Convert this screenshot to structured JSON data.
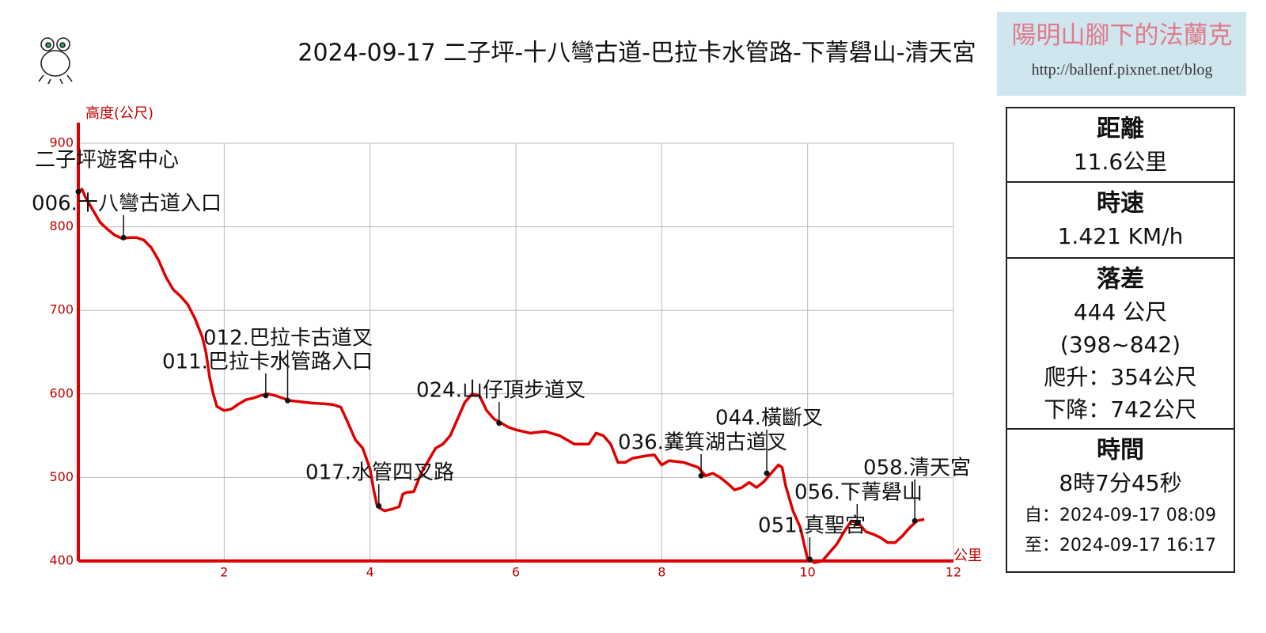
{
  "chart_data": {
    "type": "line",
    "title": "2024-09-17 二子坪-十八彎古道-巴拉卡水管路-下菁礐山-清天宮",
    "y_label": "高度(公尺)",
    "x_label": "公里",
    "x": [
      0,
      0.05,
      0.1,
      0.2,
      0.3,
      0.4,
      0.5,
      0.6,
      0.7,
      0.8,
      0.9,
      1.0,
      1.1,
      1.2,
      1.3,
      1.4,
      1.5,
      1.6,
      1.7,
      1.75,
      1.8,
      1.85,
      1.9,
      2.0,
      2.1,
      2.2,
      2.3,
      2.4,
      2.5,
      2.6,
      2.7,
      2.8,
      2.9,
      3.0,
      3.2,
      3.4,
      3.5,
      3.6,
      3.7,
      3.8,
      3.9,
      4.0,
      4.05,
      4.1,
      4.2,
      4.3,
      4.4,
      4.45,
      4.5,
      4.6,
      4.7,
      4.8,
      4.9,
      5.0,
      5.1,
      5.2,
      5.3,
      5.4,
      5.5,
      5.6,
      5.7,
      5.8,
      5.9,
      6.0,
      6.2,
      6.4,
      6.6,
      6.8,
      7.0,
      7.1,
      7.2,
      7.3,
      7.4,
      7.5,
      7.6,
      7.8,
      7.9,
      8.0,
      8.1,
      8.3,
      8.5,
      8.6,
      8.7,
      8.8,
      8.9,
      9.0,
      9.1,
      9.2,
      9.3,
      9.4,
      9.5,
      9.6,
      9.65,
      9.7,
      9.8,
      9.9,
      10.0,
      10.1,
      10.2,
      10.3,
      10.4,
      10.5,
      10.6,
      10.7,
      10.8,
      10.9,
      11.0,
      11.1,
      11.2,
      11.3,
      11.4,
      11.5,
      11.6
    ],
    "series": [
      {
        "color": "#dd0000",
        "values": [
          842,
          845,
          835,
          820,
          805,
          797,
          790,
          786,
          787,
          787,
          784,
          775,
          760,
          740,
          725,
          717,
          707,
          690,
          668,
          650,
          620,
          600,
          585,
          580,
          582,
          588,
          593,
          595,
          598,
          600,
          598,
          595,
          592,
          591,
          589,
          588,
          587,
          584,
          565,
          545,
          535,
          510,
          485,
          465,
          460,
          462,
          465,
          480,
          482,
          483,
          505,
          520,
          535,
          540,
          550,
          570,
          590,
          600,
          598,
          580,
          570,
          565,
          560,
          557,
          553,
          555,
          550,
          540,
          540,
          553,
          550,
          540,
          518,
          518,
          523,
          526,
          527,
          515,
          520,
          518,
          512,
          502,
          505,
          500,
          493,
          485,
          488,
          494,
          488,
          495,
          505,
          515,
          512,
          490,
          460,
          440,
          402,
          398,
          400,
          410,
          420,
          435,
          448,
          445,
          435,
          432,
          428,
          422,
          422,
          430,
          440,
          448,
          450
        ]
      }
    ],
    "xlim": [
      0,
      12
    ],
    "ylim": [
      400,
      900
    ],
    "xticks": [
      2,
      4,
      6,
      8,
      10,
      12
    ],
    "yticks": [
      400,
      500,
      600,
      700,
      800,
      900
    ],
    "grid": true,
    "waypoints": [
      {
        "label": "二子坪遊客中心",
        "x": 0.0,
        "y": 842
      },
      {
        "label": "006.十八彎古道入口",
        "x": 0.62,
        "y": 787
      },
      {
        "label": "011.巴拉卡水管路入口",
        "x": 2.57,
        "y": 598
      },
      {
        "label": "012.巴拉卡古道叉",
        "x": 2.87,
        "y": 592
      },
      {
        "label": "017.水管四叉路",
        "x": 4.12,
        "y": 466
      },
      {
        "label": "024.山仔頂步道叉",
        "x": 5.77,
        "y": 565
      },
      {
        "label": "036.糞箕湖古道叉",
        "x": 8.54,
        "y": 502
      },
      {
        "label": "044.橫斷叉",
        "x": 9.44,
        "y": 505
      },
      {
        "label": "051.真聖宮",
        "x": 10.03,
        "y": 402
      },
      {
        "label": "056.下菁礐山",
        "x": 10.68,
        "y": 445
      },
      {
        "label": "058.清天宮",
        "x": 11.47,
        "y": 448
      }
    ]
  },
  "brand": {
    "name": "陽明山腳下的法蘭克",
    "url": "http://ballenf.pixnet.net/blog"
  },
  "stats": [
    {
      "heading": "距離",
      "lines": [
        "11.6公里"
      ]
    },
    {
      "heading": "時速",
      "lines": [
        "1.421 KM/h"
      ]
    },
    {
      "heading": "落差",
      "lines": [
        "444 公尺",
        "(398~842)",
        "爬升：354公尺",
        "下降：742公尺"
      ]
    },
    {
      "heading": "時間",
      "lines": [
        "8時7分45秒",
        "自：2024-09-17 08:09",
        "至：2024-09-17 16:17"
      ]
    }
  ]
}
